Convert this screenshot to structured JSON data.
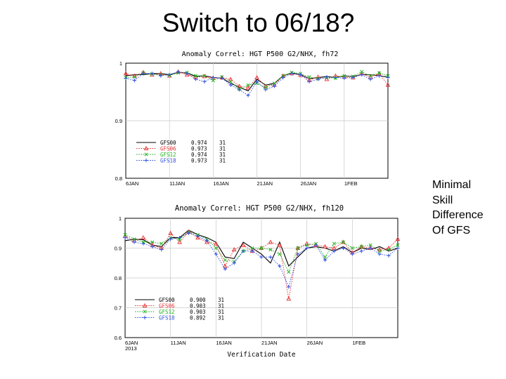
{
  "slide": {
    "title": "Switch to 06/18?",
    "note": [
      "Minimal",
      "Skill",
      "Difference",
      "Of GFS"
    ]
  },
  "chart_data": [
    {
      "type": "line",
      "title": "Anomaly Correl: HGT P500 G2/NHX, fh72",
      "xlabel": "",
      "ylabel": "",
      "ylim": [
        0.8,
        1.0
      ],
      "yticks": [
        "1",
        "0.9",
        "0.8"
      ],
      "xticks": [
        "6JAN",
        "11JAN",
        "16JAN",
        "21JAN",
        "26JAN",
        "1FEB"
      ],
      "x": [
        "6JAN",
        "7JAN",
        "8JAN",
        "9JAN",
        "10JAN",
        "11JAN",
        "12JAN",
        "13JAN",
        "14JAN",
        "15JAN",
        "16JAN",
        "17JAN",
        "18JAN",
        "19JAN",
        "20JAN",
        "21JAN",
        "22JAN",
        "23JAN",
        "24JAN",
        "25JAN",
        "26JAN",
        "27JAN",
        "28JAN",
        "29JAN",
        "30JAN",
        "31JAN",
        "1FEB",
        "2FEB",
        "3FEB",
        "4FEB",
        "5FEB"
      ],
      "legend_position": "bottom-left",
      "legend_columns": [
        "name",
        "mean",
        "count"
      ],
      "series": [
        {
          "name": "GFS00",
          "mean": "0.974",
          "count": "31",
          "color": "#000000",
          "marker": "none",
          "values": [
            0.978,
            0.98,
            0.98,
            0.982,
            0.982,
            0.98,
            0.984,
            0.983,
            0.977,
            0.978,
            0.975,
            0.974,
            0.965,
            0.958,
            0.952,
            0.972,
            0.962,
            0.965,
            0.978,
            0.983,
            0.98,
            0.973,
            0.975,
            0.977,
            0.975,
            0.978,
            0.977,
            0.98,
            0.98,
            0.978,
            0.976
          ]
        },
        {
          "name": "GFS06",
          "mean": "0.973",
          "count": "31",
          "color": "#e83030",
          "marker": "triangle",
          "values": [
            0.982,
            0.978,
            0.984,
            0.98,
            0.982,
            0.978,
            0.985,
            0.98,
            0.976,
            0.977,
            0.974,
            0.975,
            0.972,
            0.96,
            0.957,
            0.975,
            0.96,
            0.962,
            0.978,
            0.982,
            0.979,
            0.97,
            0.976,
            0.972,
            0.978,
            0.976,
            0.975,
            0.982,
            0.976,
            0.982,
            0.962
          ]
        },
        {
          "name": "GFS12",
          "mean": "0.974",
          "count": "31",
          "color": "#20b020",
          "marker": "x",
          "values": [
            0.975,
            0.976,
            0.983,
            0.981,
            0.98,
            0.979,
            0.983,
            0.984,
            0.978,
            0.978,
            0.97,
            0.976,
            0.968,
            0.955,
            0.962,
            0.965,
            0.958,
            0.965,
            0.978,
            0.984,
            0.982,
            0.976,
            0.973,
            0.975,
            0.974,
            0.978,
            0.977,
            0.985,
            0.978,
            0.983,
            0.978
          ]
        },
        {
          "name": "GFS18",
          "mean": "0.973",
          "count": "31",
          "color": "#3050e0",
          "marker": "plus",
          "values": [
            0.974,
            0.97,
            0.982,
            0.982,
            0.978,
            0.98,
            0.985,
            0.982,
            0.972,
            0.968,
            0.975,
            0.974,
            0.962,
            0.954,
            0.944,
            0.968,
            0.954,
            0.96,
            0.975,
            0.982,
            0.98,
            0.968,
            0.972,
            0.976,
            0.975,
            0.974,
            0.975,
            0.98,
            0.972,
            0.978,
            0.975
          ]
        }
      ]
    },
    {
      "type": "line",
      "title": "Anomaly Correl: HGT P500 G2/NHX, fh120",
      "xlabel": "Verification Date",
      "ylabel": "",
      "ylim": [
        0.6,
        1.0
      ],
      "yticks": [
        "1",
        "0.9",
        "0.8",
        "0.7",
        "0.6"
      ],
      "xticks": [
        "6JAN 2013",
        "11JAN",
        "16JAN",
        "21JAN",
        "26JAN",
        "1FEB"
      ],
      "x": [
        "6JAN",
        "7JAN",
        "8JAN",
        "9JAN",
        "10JAN",
        "11JAN",
        "12JAN",
        "13JAN",
        "14JAN",
        "15JAN",
        "16JAN",
        "17JAN",
        "18JAN",
        "19JAN",
        "20JAN",
        "21JAN",
        "22JAN",
        "23JAN",
        "24JAN",
        "25JAN",
        "26JAN",
        "27JAN",
        "28JAN",
        "29JAN",
        "30JAN",
        "31JAN",
        "1FEB",
        "2FEB",
        "3FEB",
        "4FEB",
        "5FEB"
      ],
      "legend_position": "bottom-left",
      "legend_columns": [
        "name",
        "mean",
        "count"
      ],
      "series": [
        {
          "name": "GFS00",
          "mean": "0.900",
          "count": "31",
          "color": "#000000",
          "marker": "none",
          "values": [
            0.925,
            0.93,
            0.928,
            0.91,
            0.905,
            0.935,
            0.935,
            0.96,
            0.945,
            0.935,
            0.92,
            0.87,
            0.865,
            0.92,
            0.9,
            0.88,
            0.85,
            0.92,
            0.84,
            0.87,
            0.9,
            0.905,
            0.9,
            0.89,
            0.905,
            0.885,
            0.9,
            0.895,
            0.905,
            0.89,
            0.9
          ]
        },
        {
          "name": "GFS06",
          "mean": "0.903",
          "count": "31",
          "color": "#e83030",
          "marker": "triangle",
          "values": [
            0.94,
            0.925,
            0.935,
            0.91,
            0.9,
            0.95,
            0.92,
            0.955,
            0.935,
            0.92,
            0.915,
            0.84,
            0.895,
            0.91,
            0.89,
            0.9,
            0.92,
            0.91,
            0.73,
            0.9,
            0.915,
            0.91,
            0.905,
            0.9,
            0.92,
            0.885,
            0.905,
            0.9,
            0.895,
            0.9,
            0.93
          ]
        },
        {
          "name": "GFS12",
          "mean": "0.903",
          "count": "31",
          "color": "#20b020",
          "marker": "x",
          "values": [
            0.945,
            0.93,
            0.92,
            0.92,
            0.915,
            0.935,
            0.93,
            0.955,
            0.945,
            0.93,
            0.9,
            0.86,
            0.855,
            0.89,
            0.9,
            0.9,
            0.895,
            0.88,
            0.82,
            0.9,
            0.91,
            0.915,
            0.87,
            0.915,
            0.92,
            0.9,
            0.905,
            0.91,
            0.89,
            0.895,
            0.91
          ]
        },
        {
          "name": "GFS18",
          "mean": "0.892",
          "count": "31",
          "color": "#3050e0",
          "marker": "plus",
          "values": [
            0.935,
            0.92,
            0.915,
            0.905,
            0.895,
            0.93,
            0.935,
            0.95,
            0.94,
            0.925,
            0.88,
            0.83,
            0.85,
            0.89,
            0.89,
            0.87,
            0.87,
            0.84,
            0.77,
            0.88,
            0.9,
            0.91,
            0.86,
            0.89,
            0.9,
            0.88,
            0.89,
            0.9,
            0.88,
            0.875,
            0.9
          ]
        }
      ]
    }
  ]
}
